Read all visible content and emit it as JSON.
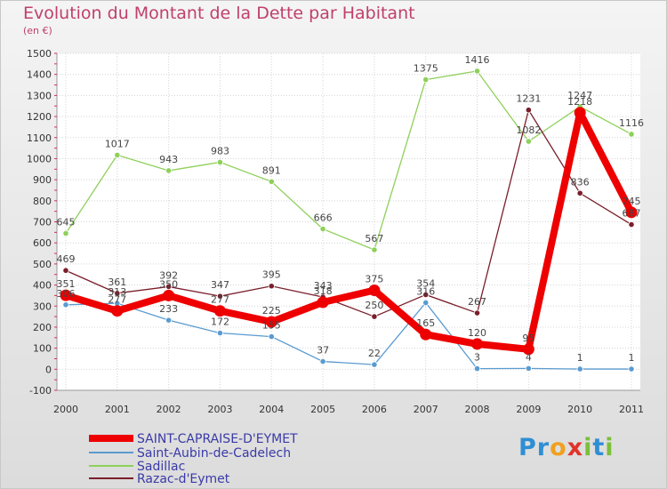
{
  "chart_data": {
    "type": "line",
    "title": "Evolution du Montant de la Dette par Habitant",
    "subtitle": "(en €)",
    "x": [
      "2000",
      "2001",
      "2002",
      "2003",
      "2004",
      "2005",
      "2006",
      "2007",
      "2008",
      "2009",
      "2010",
      "2011"
    ],
    "ylim": [
      -100,
      1500
    ],
    "yticks": [
      "-100",
      "0",
      "100",
      "200",
      "300",
      "400",
      "500",
      "600",
      "700",
      "800",
      "900",
      "1000",
      "1100",
      "1200",
      "1300",
      "1400",
      "1500"
    ],
    "grid": true,
    "legend_position": "bottom-left",
    "series": [
      {
        "name": "Saint-Aubin-de-Cadelech",
        "color": "#5a9bd0",
        "values": [
          306,
          313,
          233,
          172,
          155,
          37,
          22,
          316,
          3,
          4,
          1,
          1
        ],
        "labels": [
          "306",
          "313",
          "233",
          "172",
          "155",
          "37",
          "22",
          "316",
          "3",
          "4",
          "1",
          "1"
        ]
      },
      {
        "name": "Sadillac",
        "color": "#8ed05a",
        "values": [
          645,
          1017,
          943,
          983,
          891,
          666,
          567,
          1375,
          1416,
          1082,
          1247,
          1116
        ],
        "labels": [
          "645",
          "1017",
          "943",
          "983",
          "891",
          "666",
          "567",
          "1375",
          "1416",
          "1082",
          "1247",
          "1116"
        ]
      },
      {
        "name": "Razac-d'Eymet",
        "color": "#7a1e2a",
        "values": [
          469,
          361,
          392,
          347,
          395,
          343,
          250,
          354,
          267,
          1231,
          836,
          687
        ],
        "labels": [
          "469",
          "361",
          "392",
          "347",
          "395",
          "343",
          "250",
          "354",
          "267",
          "1231",
          "836",
          "687"
        ]
      },
      {
        "name": "SAINT-CAPRAISE-D'EYMET",
        "color": "#ee0000",
        "values": [
          351,
          277,
          350,
          277,
          225,
          318,
          375,
          165,
          120,
          95,
          1218,
          745
        ],
        "labels": [
          "351",
          "277",
          "350",
          "277",
          "225",
          "318",
          "375",
          "165",
          "120",
          "95",
          "1218",
          "745"
        ]
      }
    ],
    "legend": [
      "SAINT-CAPRAISE-D'EYMET",
      "Saint-Aubin-de-Cadelech",
      "Sadillac",
      "Razac-d'Eymet"
    ]
  },
  "branding": {
    "logo_text": "Proxiti",
    "logo_letters": [
      "P",
      "r",
      "o",
      "x",
      "i",
      "t",
      "i"
    ],
    "logo_colors": [
      "#2e8fd4",
      "#2e8fd4",
      "#f0a020",
      "#e0332a",
      "#7bbf3a",
      "#2e8fd4",
      "#7bbf3a"
    ]
  }
}
